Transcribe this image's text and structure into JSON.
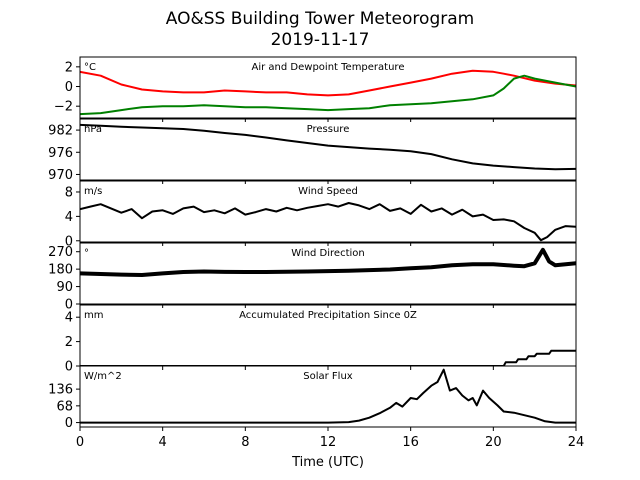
{
  "figure": {
    "title_line1": "AO&SS Building Tower Meteorogram",
    "title_line2": "2019-11-17",
    "xlabel": "Time (UTC)",
    "x_ticks": [
      0,
      4,
      8,
      12,
      16,
      20,
      24
    ],
    "xlim": [
      0,
      24
    ]
  },
  "chart_data": [
    {
      "type": "line",
      "title": "Air and Dewpoint Temperature",
      "unit": "°C",
      "ylim": [
        -3.2,
        3.0
      ],
      "y_ticks": [
        2,
        0,
        -2
      ],
      "series": [
        {
          "color": "#ff0000",
          "x": [
            0,
            1,
            2,
            3,
            4,
            5,
            6,
            7,
            8,
            9,
            10,
            11,
            12,
            13,
            14,
            15,
            16,
            17,
            18,
            19,
            20,
            20.5,
            21,
            22,
            23,
            24
          ],
          "y": [
            1.5,
            1.1,
            0.2,
            -0.3,
            -0.5,
            -0.6,
            -0.6,
            -0.4,
            -0.5,
            -0.6,
            -0.6,
            -0.8,
            -0.9,
            -0.8,
            -0.4,
            0.0,
            0.4,
            0.8,
            1.3,
            1.6,
            1.5,
            1.3,
            1.1,
            0.6,
            0.3,
            0.1
          ]
        },
        {
          "color": "#008000",
          "x": [
            0,
            1,
            2,
            3,
            4,
            5,
            6,
            7,
            8,
            9,
            10,
            11,
            12,
            13,
            14,
            15,
            16,
            17,
            18,
            19,
            20,
            20.5,
            21,
            21.5,
            22,
            23,
            24
          ],
          "y": [
            -2.8,
            -2.7,
            -2.4,
            -2.1,
            -2.0,
            -2.0,
            -1.9,
            -2.0,
            -2.1,
            -2.1,
            -2.2,
            -2.3,
            -2.4,
            -2.3,
            -2.2,
            -1.9,
            -1.8,
            -1.7,
            -1.5,
            -1.3,
            -0.9,
            -0.2,
            0.8,
            1.1,
            0.8,
            0.4,
            0.0
          ]
        }
      ]
    },
    {
      "type": "line",
      "title": "Pressure",
      "unit": "hPa",
      "ylim": [
        968.5,
        985.0
      ],
      "y_ticks": [
        982,
        976,
        970
      ],
      "series": [
        {
          "color": "#000000",
          "x": [
            0,
            1,
            2,
            3,
            4,
            5,
            6,
            7,
            8,
            9,
            10,
            11,
            12,
            13,
            14,
            15,
            16,
            17,
            18,
            19,
            20,
            21,
            22,
            23,
            24
          ],
          "y": [
            983.4,
            983.2,
            982.9,
            982.7,
            982.5,
            982.3,
            981.8,
            981.2,
            980.7,
            980.0,
            979.2,
            978.5,
            977.8,
            977.4,
            977.0,
            976.7,
            976.3,
            975.5,
            974.1,
            973.0,
            972.4,
            972.0,
            971.6,
            971.4,
            971.5
          ]
        }
      ]
    },
    {
      "type": "line",
      "title": "Wind Speed",
      "unit": "m/s",
      "ylim": [
        -0.2,
        9.8
      ],
      "y_ticks": [
        8,
        4,
        0
      ],
      "series": [
        {
          "color": "#000000",
          "x": [
            0,
            0.5,
            1,
            1.5,
            2,
            2.5,
            3,
            3.5,
            4,
            4.5,
            5,
            5.5,
            6,
            6.5,
            7,
            7.5,
            8,
            8.5,
            9,
            9.5,
            10,
            10.5,
            11,
            11.5,
            12,
            12.5,
            13,
            13.5,
            14,
            14.5,
            15,
            15.5,
            16,
            16.5,
            17,
            17.5,
            18,
            18.5,
            19,
            19.5,
            20,
            20.5,
            21,
            21.5,
            22,
            22.3,
            22.6,
            23,
            23.5,
            24
          ],
          "y": [
            5.2,
            5.6,
            6.0,
            5.3,
            4.6,
            5.2,
            3.7,
            4.8,
            5.0,
            4.4,
            5.3,
            5.6,
            4.7,
            5.0,
            4.5,
            5.3,
            4.3,
            4.7,
            5.2,
            4.8,
            5.4,
            5.0,
            5.4,
            5.7,
            6.0,
            5.6,
            6.2,
            5.8,
            5.2,
            6.0,
            4.9,
            5.3,
            4.4,
            5.9,
            4.8,
            5.3,
            4.3,
            5.1,
            4.0,
            4.3,
            3.4,
            3.5,
            3.2,
            2.1,
            1.3,
            0.1,
            0.6,
            1.8,
            2.4,
            2.3
          ]
        }
      ]
    },
    {
      "type": "scatter",
      "title": "Wind Direction",
      "unit": "°",
      "ylim": [
        0,
        315
      ],
      "y_ticks": [
        270,
        180,
        90,
        0
      ],
      "series": [
        {
          "color": "#000000",
          "x": [
            0,
            1,
            2,
            3,
            4,
            5,
            6,
            7,
            8,
            9,
            10,
            11,
            12,
            13,
            14,
            15,
            16,
            17,
            18,
            19,
            20,
            21,
            21.5,
            22,
            22.4,
            22.7,
            23,
            23.5,
            24
          ],
          "y": [
            158,
            155,
            152,
            150,
            158,
            165,
            168,
            166,
            165,
            165,
            167,
            168,
            170,
            172,
            175,
            178,
            185,
            190,
            200,
            205,
            205,
            198,
            195,
            210,
            280,
            220,
            200,
            205,
            210
          ]
        }
      ]
    },
    {
      "type": "line",
      "title": "Accumulated Precipitation Since 0Z",
      "unit": "mm",
      "ylim": [
        0,
        5
      ],
      "y_ticks": [
        4,
        2,
        0
      ],
      "series": [
        {
          "color": "#000000",
          "x": [
            0,
            20.5,
            20.6,
            21.1,
            21.2,
            21.6,
            21.7,
            22.0,
            22.1,
            22.7,
            22.8,
            24
          ],
          "y": [
            0,
            0,
            0.3,
            0.3,
            0.55,
            0.55,
            0.8,
            0.8,
            1.0,
            1.0,
            1.25,
            1.25
          ]
        }
      ]
    },
    {
      "type": "line",
      "title": "Solar Flux",
      "unit": "W/m^2",
      "ylim": [
        -18,
        230
      ],
      "y_ticks": [
        136,
        68,
        0
      ],
      "series": [
        {
          "color": "#000000",
          "x": [
            0,
            12,
            13,
            13.5,
            14,
            14.5,
            15,
            15.3,
            15.6,
            16,
            16.3,
            16.6,
            17,
            17.3,
            17.6,
            17.9,
            18.2,
            18.5,
            18.8,
            19,
            19.2,
            19.5,
            19.8,
            20.2,
            20.5,
            21,
            21.5,
            22,
            22.5,
            23,
            24
          ],
          "y": [
            0,
            0,
            2,
            8,
            20,
            38,
            60,
            80,
            65,
            100,
            95,
            120,
            150,
            165,
            215,
            130,
            140,
            110,
            90,
            100,
            70,
            130,
            100,
            70,
            45,
            40,
            30,
            20,
            5,
            0,
            0
          ]
        }
      ]
    }
  ]
}
